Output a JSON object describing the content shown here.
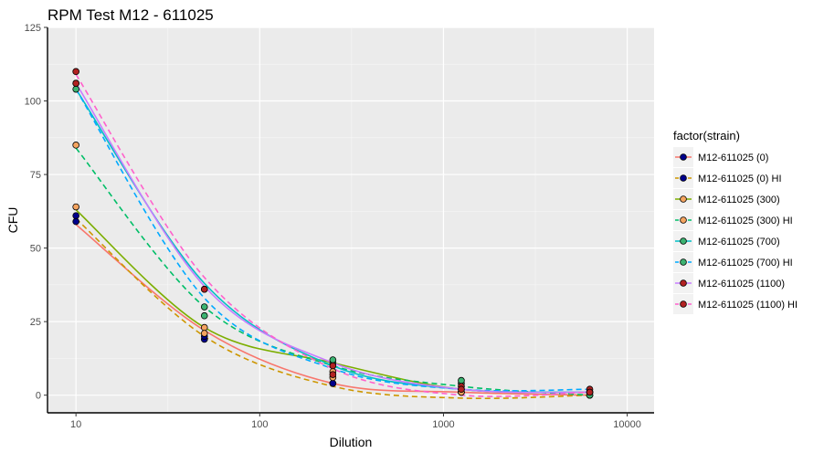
{
  "chart_data": {
    "type": "scatter",
    "title": "RPM Test M12 - 611025",
    "xlabel": "Dilution",
    "ylabel": "CFU",
    "x_scale": "log10",
    "xlim": [
      7,
      14000
    ],
    "ylim": [
      -6,
      125
    ],
    "x_ticks": [
      10,
      100,
      1000,
      10000
    ],
    "x_tick_labels": [
      "10",
      "100",
      "1000",
      "10000"
    ],
    "y_ticks": [
      0,
      25,
      50,
      75,
      100,
      125
    ],
    "y_tick_labels": [
      "0",
      "25",
      "50",
      "75",
      "100",
      "125"
    ],
    "grid": true,
    "legend_title": "factor(strain)",
    "legend_position": "right",
    "series": [
      {
        "name": "M12-611025 (0)",
        "color": "#00008b",
        "line_color": "#f8766d",
        "dash": "solid",
        "x": [
          10,
          50,
          250,
          1250,
          6250
        ],
        "y": [
          61,
          19,
          4,
          1,
          0
        ],
        "smooth": [
          58,
          22,
          4,
          1,
          0
        ]
      },
      {
        "name": "M12-611025 (0) HI",
        "color": "#00008b",
        "line_color": "#cd9600",
        "dash": "dashed",
        "x": [
          10,
          50,
          250,
          1250,
          6250
        ],
        "y": [
          59,
          20,
          4,
          1,
          1
        ],
        "smooth": [
          60,
          20,
          3,
          -1,
          0
        ]
      },
      {
        "name": "M12-611025 (300)",
        "color": "#f4a460",
        "line_color": "#7cae00",
        "dash": "solid",
        "x": [
          10,
          50,
          250,
          1250,
          6250
        ],
        "y": [
          64,
          23,
          8,
          2,
          1
        ],
        "smooth": [
          63,
          23,
          11,
          2,
          1
        ]
      },
      {
        "name": "M12-611025 (300) HI",
        "color": "#f4a460",
        "line_color": "#00be67",
        "dash": "dashed",
        "x": [
          10,
          50,
          250,
          1250,
          6250
        ],
        "y": [
          85,
          21,
          6,
          1,
          0
        ],
        "smooth": [
          84,
          30,
          10,
          3,
          0
        ]
      },
      {
        "name": "M12-611025 (700)",
        "color": "#3cb371",
        "line_color": "#00bfc4",
        "dash": "solid",
        "x": [
          10,
          50,
          250,
          1250,
          6250
        ],
        "y": [
          104,
          30,
          11,
          4,
          1
        ],
        "smooth": [
          104,
          38,
          10,
          2,
          1
        ]
      },
      {
        "name": "M12-611025 (700) HI",
        "color": "#3cb371",
        "line_color": "#00a9ff",
        "dash": "dashed",
        "x": [
          10,
          50,
          250,
          1250,
          6250
        ],
        "y": [
          106,
          27,
          12,
          5,
          0
        ],
        "smooth": [
          104,
          33,
          9,
          2,
          2
        ]
      },
      {
        "name": "M12-611025 (1100)",
        "color": "#b22222",
        "line_color": "#c77cff",
        "dash": "solid",
        "x": [
          10,
          50,
          250,
          1250,
          6250
        ],
        "y": [
          106,
          36,
          10,
          3,
          2
        ],
        "smooth": [
          106,
          37,
          11,
          2,
          1
        ]
      },
      {
        "name": "M12-611025 (1100) HI",
        "color": "#b22222",
        "line_color": "#ff61cc",
        "dash": "dashed",
        "x": [
          10,
          50,
          250,
          1250,
          6250
        ],
        "y": [
          110,
          36,
          7,
          2,
          1
        ],
        "smooth": [
          109,
          40,
          9,
          0,
          1
        ]
      }
    ]
  }
}
